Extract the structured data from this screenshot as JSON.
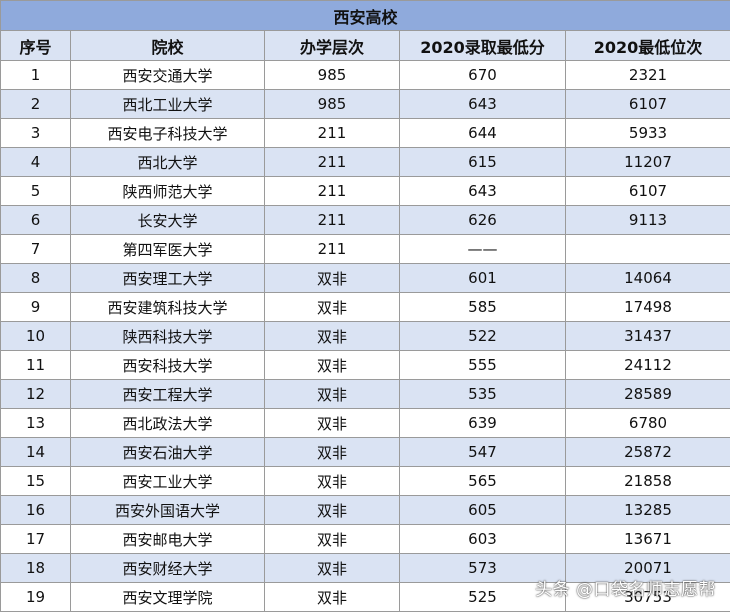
{
  "table": {
    "title": "西安高校",
    "columns": [
      "序号",
      "院校",
      "办学层次",
      "2020录取最低分",
      "2020最低位次"
    ],
    "rows": [
      [
        "1",
        "西安交通大学",
        "985",
        "670",
        "2321"
      ],
      [
        "2",
        "西北工业大学",
        "985",
        "643",
        "6107"
      ],
      [
        "3",
        "西安电子科技大学",
        "211",
        "644",
        "5933"
      ],
      [
        "4",
        "西北大学",
        "211",
        "615",
        "11207"
      ],
      [
        "5",
        "陕西师范大学",
        "211",
        "643",
        "6107"
      ],
      [
        "6",
        "长安大学",
        "211",
        "626",
        "9113"
      ],
      [
        "7",
        "第四军医大学",
        "211",
        "——",
        ""
      ],
      [
        "8",
        "西安理工大学",
        "双非",
        "601",
        "14064"
      ],
      [
        "9",
        "西安建筑科技大学",
        "双非",
        "585",
        "17498"
      ],
      [
        "10",
        "陕西科技大学",
        "双非",
        "522",
        "31437"
      ],
      [
        "11",
        "西安科技大学",
        "双非",
        "555",
        "24112"
      ],
      [
        "12",
        "西安工程大学",
        "双非",
        "535",
        "28589"
      ],
      [
        "13",
        "西北政法大学",
        "双非",
        "639",
        "6780"
      ],
      [
        "14",
        "西安石油大学",
        "双非",
        "547",
        "25872"
      ],
      [
        "15",
        "西安工业大学",
        "双非",
        "565",
        "21858"
      ],
      [
        "16",
        "西安外国语大学",
        "双非",
        "605",
        "13285"
      ],
      [
        "17",
        "西安邮电大学",
        "双非",
        "603",
        "13671"
      ],
      [
        "18",
        "西安财经大学",
        "双非",
        "573",
        "20071"
      ],
      [
        "19",
        "西安文理学院",
        "双非",
        "525",
        "30753"
      ]
    ]
  },
  "watermark": {
    "text": "头条 @口袋名师志愿帮"
  }
}
